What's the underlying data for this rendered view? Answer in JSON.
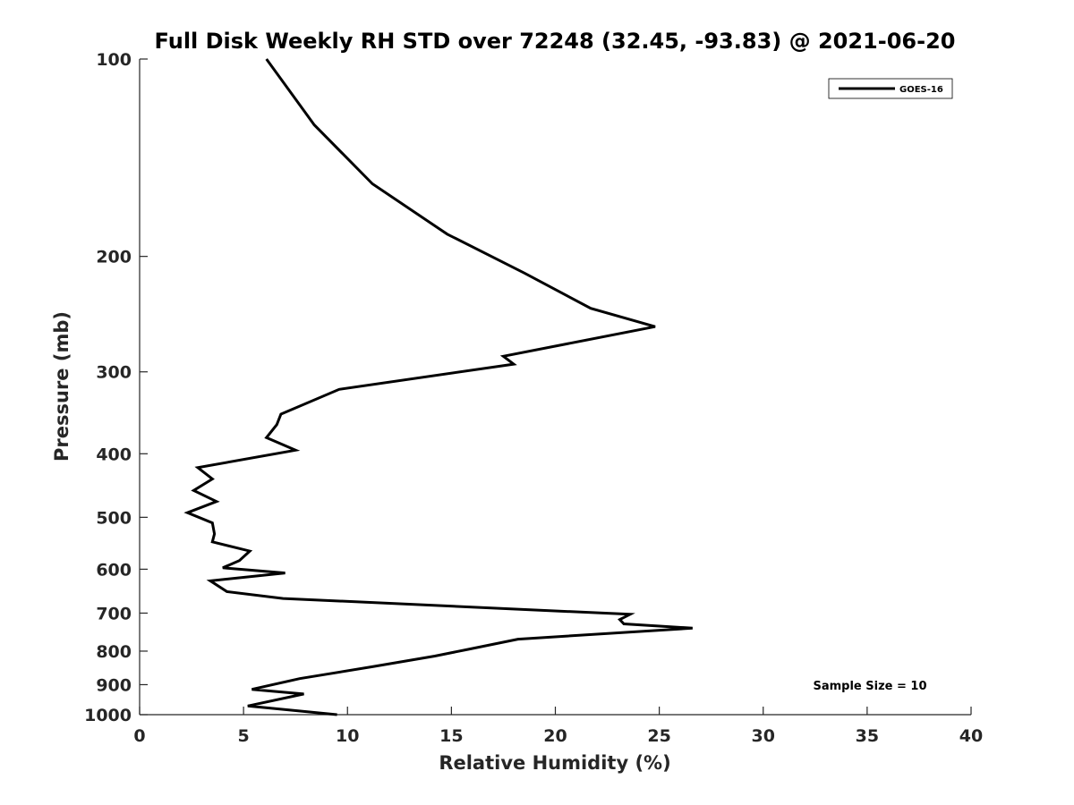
{
  "chart_data": {
    "type": "line",
    "title": "Full Disk Weekly RH STD over 72248 (32.45, -93.83) @ 2021-06-20",
    "xlabel": "Relative Humidity (%)",
    "ylabel": "Pressure (mb)",
    "xlim": [
      0,
      40
    ],
    "ylim": [
      100,
      1000
    ],
    "yscale": "log",
    "y_reversed": true,
    "xticks": [
      0,
      5,
      10,
      15,
      20,
      25,
      30,
      35,
      40
    ],
    "yticks": [
      100,
      200,
      300,
      400,
      500,
      600,
      700,
      800,
      900,
      1000
    ],
    "grid": false,
    "legend": {
      "position": "top-right",
      "entries": [
        "GOES-16"
      ]
    },
    "annotation": "Sample Size = 10",
    "series": [
      {
        "name": "GOES-16",
        "color": "#000000",
        "points": [
          [
            6.1,
            100
          ],
          [
            8.4,
            126
          ],
          [
            11.2,
            155
          ],
          [
            14.8,
            185
          ],
          [
            18.5,
            212
          ],
          [
            21.7,
            240
          ],
          [
            24.8,
            256
          ],
          [
            17.5,
            284
          ],
          [
            18.0,
            292
          ],
          [
            9.6,
            319
          ],
          [
            6.8,
            348
          ],
          [
            6.6,
            361
          ],
          [
            6.1,
            378
          ],
          [
            7.5,
            395
          ],
          [
            2.8,
            420
          ],
          [
            3.5,
            437
          ],
          [
            2.6,
            455
          ],
          [
            3.7,
            473
          ],
          [
            2.3,
            492
          ],
          [
            3.5,
            510
          ],
          [
            3.6,
            530
          ],
          [
            3.5,
            545
          ],
          [
            5.3,
            563
          ],
          [
            4.8,
            582
          ],
          [
            4.0,
            597
          ],
          [
            7.0,
            608
          ],
          [
            3.4,
            625
          ],
          [
            4.2,
            649
          ],
          [
            6.9,
            665
          ],
          [
            23.6,
            703
          ],
          [
            23.1,
            716
          ],
          [
            23.3,
            727
          ],
          [
            26.6,
            738
          ],
          [
            18.2,
            767
          ],
          [
            15.8,
            795
          ],
          [
            14.2,
            814
          ],
          [
            11.2,
            845
          ],
          [
            7.7,
            881
          ],
          [
            5.4,
            915
          ],
          [
            7.9,
            930
          ],
          [
            5.2,
            970
          ],
          [
            9.5,
            1000
          ]
        ]
      }
    ]
  }
}
